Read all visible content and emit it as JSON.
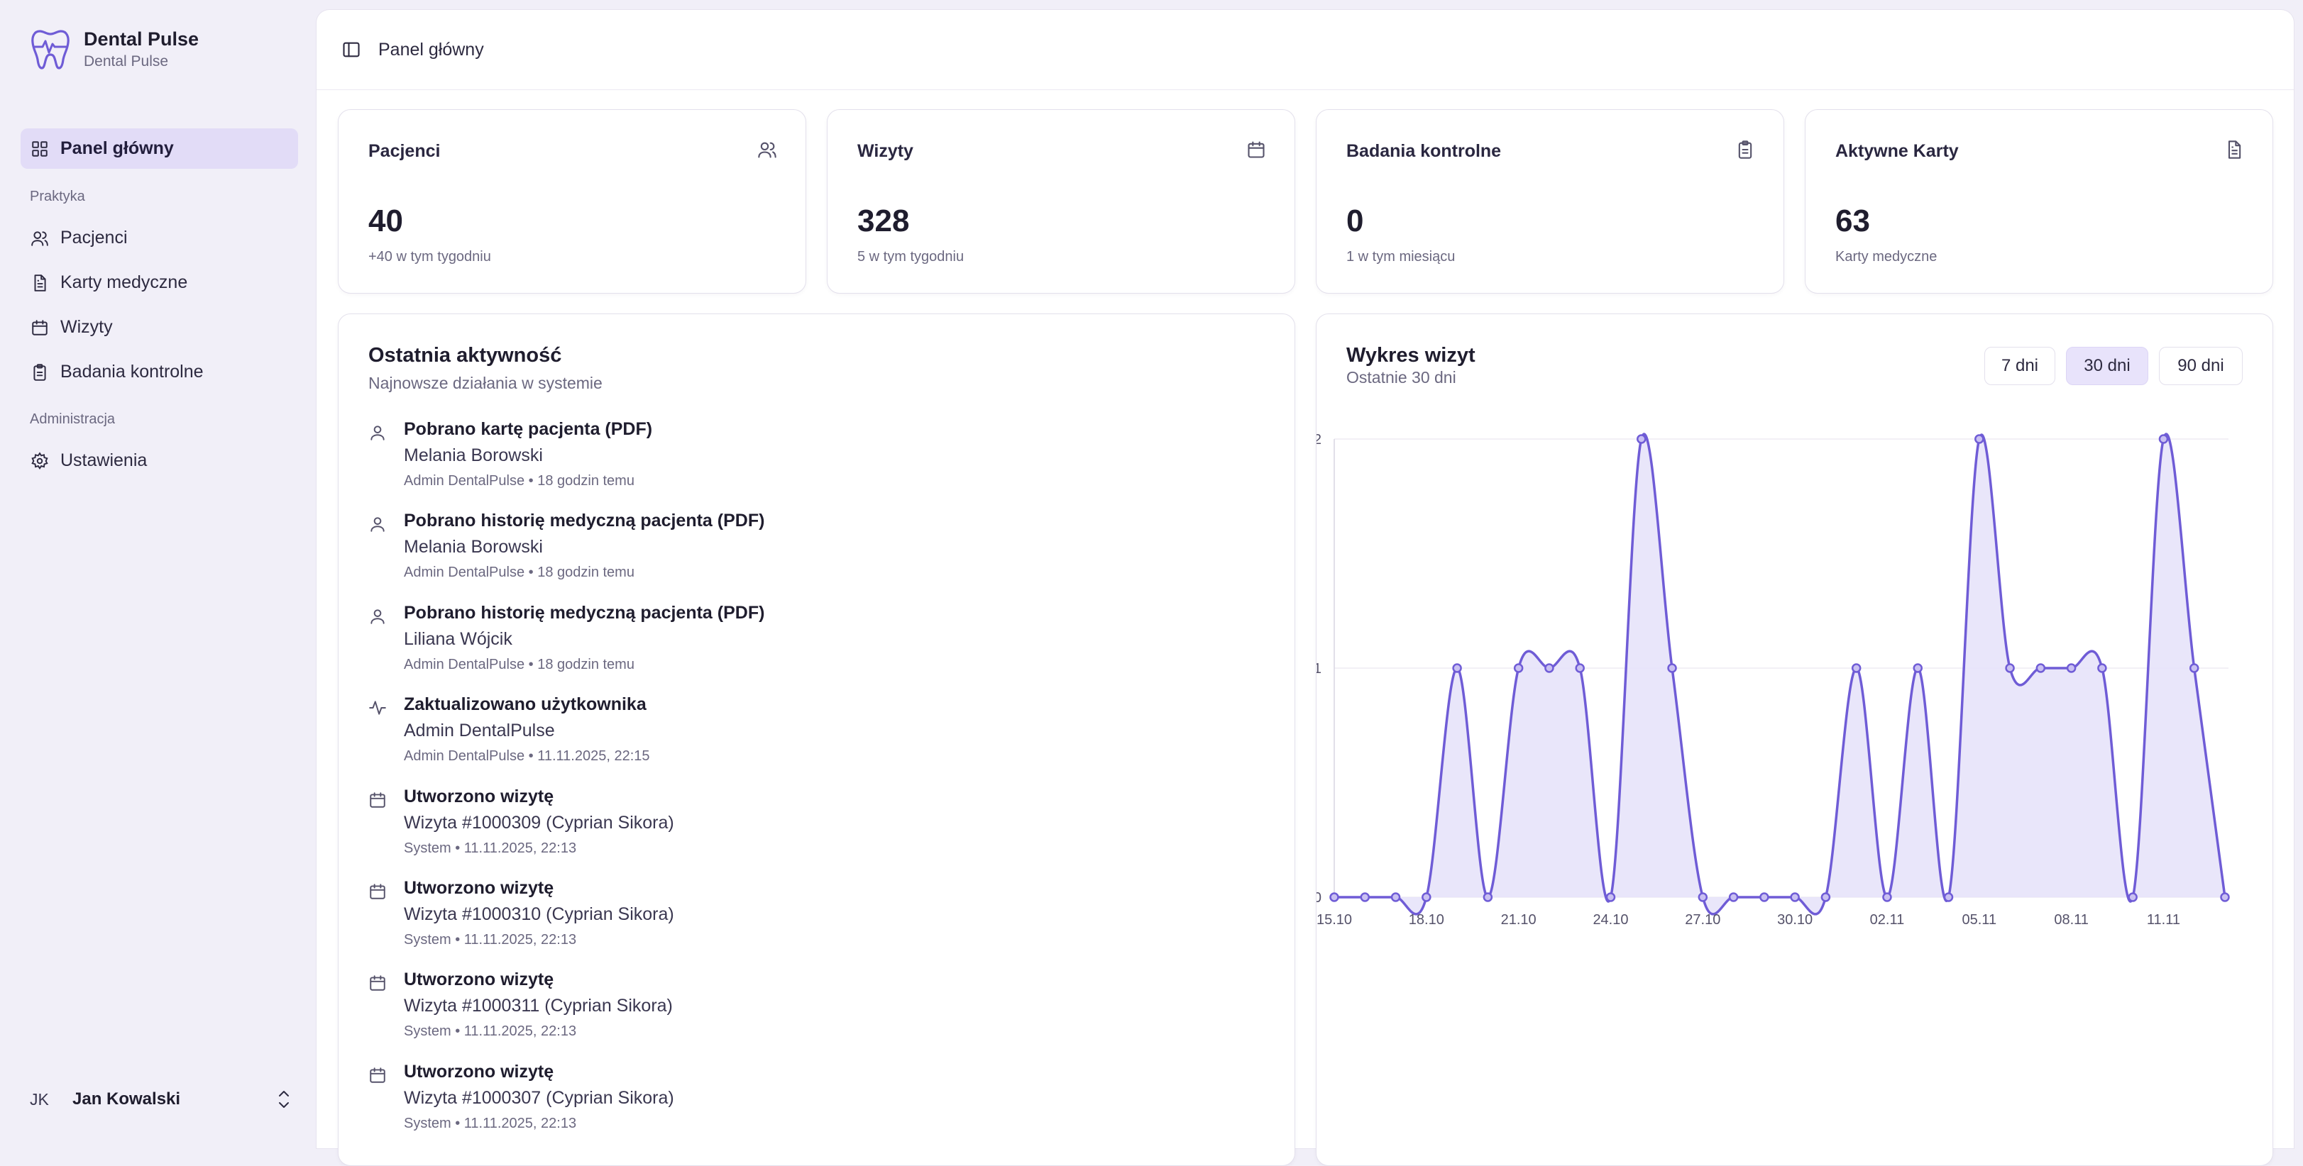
{
  "brand": {
    "title": "Dental Pulse",
    "subtitle": "Dental Pulse"
  },
  "sidebar": {
    "main_item": "Panel główny",
    "sections": [
      {
        "label": "Praktyka",
        "items": [
          "Pacjenci",
          "Karty medyczne",
          "Wizyty",
          "Badania kontrolne"
        ]
      },
      {
        "label": "Administracja",
        "items": [
          "Ustawienia"
        ]
      }
    ]
  },
  "user": {
    "initials": "JK",
    "name": "Jan Kowalski"
  },
  "topbar": {
    "breadcrumb": "Panel główny"
  },
  "stats": [
    {
      "title": "Pacjenci",
      "value": "40",
      "sub": "+40 w tym tygodniu",
      "icon": "users-icon"
    },
    {
      "title": "Wizyty",
      "value": "328",
      "sub": "5 w tym tygodniu",
      "icon": "calendar-icon"
    },
    {
      "title": "Badania kontrolne",
      "value": "0",
      "sub": "1 w tym miesiącu",
      "icon": "clipboard-icon"
    },
    {
      "title": "Aktywne Karty",
      "value": "63",
      "sub": "Karty medyczne",
      "icon": "document-icon"
    }
  ],
  "activity": {
    "title": "Ostatnia aktywność",
    "subtitle": "Najnowsze działania w systemie",
    "items": [
      {
        "icon": "user-icon",
        "head": "Pobrano kartę pacjenta (PDF)",
        "detail": "Melania Borowski",
        "meta": "Admin DentalPulse • 18 godzin temu"
      },
      {
        "icon": "user-icon",
        "head": "Pobrano historię medyczną pacjenta (PDF)",
        "detail": "Melania Borowski",
        "meta": "Admin DentalPulse • 18 godzin temu"
      },
      {
        "icon": "user-icon",
        "head": "Pobrano historię medyczną pacjenta (PDF)",
        "detail": "Liliana Wójcik",
        "meta": "Admin DentalPulse • 18 godzin temu"
      },
      {
        "icon": "activity-icon",
        "head": "Zaktualizowano użytkownika",
        "detail": "Admin DentalPulse",
        "meta": "Admin DentalPulse • 11.11.2025, 22:15"
      },
      {
        "icon": "calendar-icon",
        "head": "Utworzono wizytę",
        "detail": "Wizyta #1000309 (Cyprian Sikora)",
        "meta": "System • 11.11.2025, 22:13"
      },
      {
        "icon": "calendar-icon",
        "head": "Utworzono wizytę",
        "detail": "Wizyta #1000310 (Cyprian Sikora)",
        "meta": "System • 11.11.2025, 22:13"
      },
      {
        "icon": "calendar-icon",
        "head": "Utworzono wizytę",
        "detail": "Wizyta #1000311 (Cyprian Sikora)",
        "meta": "System • 11.11.2025, 22:13"
      },
      {
        "icon": "calendar-icon",
        "head": "Utworzono wizytę",
        "detail": "Wizyta #1000307 (Cyprian Sikora)",
        "meta": "System • 11.11.2025, 22:13"
      }
    ]
  },
  "chart_panel": {
    "title": "Wykres wizyt",
    "subtitle": "Ostatnie 30 dni",
    "ranges": [
      "7 dni",
      "30 dni",
      "90 dni"
    ],
    "active_range": "30 dni"
  },
  "chart_data": {
    "type": "area",
    "x": [
      "15.10",
      "16.10",
      "17.10",
      "18.10",
      "19.10",
      "20.10",
      "21.10",
      "22.10",
      "23.10",
      "24.10",
      "25.10",
      "26.10",
      "27.10",
      "28.10",
      "29.10",
      "30.10",
      "31.10",
      "01.11",
      "02.11",
      "03.11",
      "04.11",
      "05.11",
      "06.11",
      "07.11",
      "08.11",
      "09.11",
      "10.11",
      "11.11",
      "12.11",
      "13.11"
    ],
    "x_tick_labels": [
      "15.10",
      "18.10",
      "21.10",
      "24.10",
      "27.10",
      "30.10",
      "02.11",
      "05.11",
      "08.11",
      "11.11"
    ],
    "values": [
      0,
      0,
      0,
      0,
      1,
      0,
      1,
      1,
      1,
      0,
      2,
      1,
      0,
      0,
      0,
      0,
      0,
      1,
      0,
      1,
      0,
      2,
      1,
      1,
      1,
      1,
      0,
      2,
      1,
      0
    ],
    "ylim": [
      0,
      2
    ],
    "y_ticks": [
      0,
      1,
      2
    ],
    "grid": true,
    "colors": {
      "line": "#6f5cd6",
      "fill": "#e7e3fa",
      "grid": "#eeecf4"
    }
  }
}
